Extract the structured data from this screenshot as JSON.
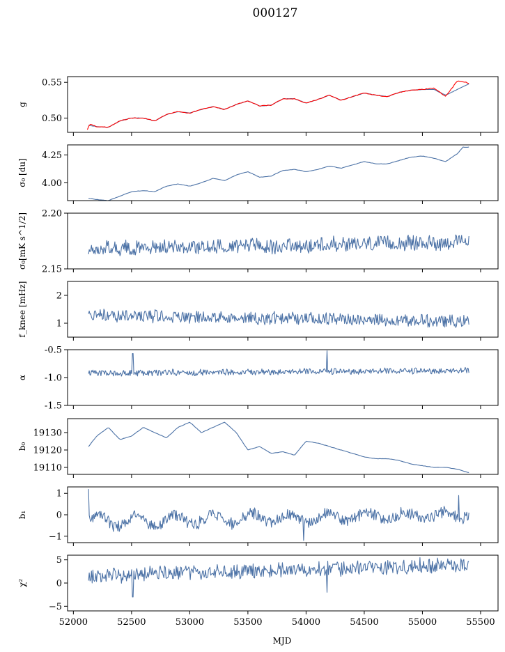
{
  "chart_data": {
    "type": "line",
    "title": "000127",
    "xlabel": "MJD",
    "xlim": [
      51950,
      55650
    ],
    "xticks": [
      52000,
      52500,
      53000,
      53500,
      54000,
      54500,
      55000,
      55500
    ],
    "x_range_data": [
      52130,
      55400
    ],
    "colors": {
      "series": "#4c72a6",
      "fit": "#ff0000"
    },
    "panels": [
      {
        "id": "g",
        "ylabel": "g",
        "ylim": [
          0.48,
          0.558
        ],
        "yticks": [
          0.5,
          0.55
        ],
        "ytick_labels": [
          "0.50",
          "0.55"
        ],
        "series": [
          {
            "color": "#4c72a6",
            "kind": "smooth",
            "x": [
              52130,
              52200,
              52300,
              52400,
              52500,
              52600,
              52700,
              52800,
              52900,
              53000,
              53100,
              53200,
              53300,
              53400,
              53500,
              53600,
              53700,
              53800,
              53900,
              54000,
              54100,
              54200,
              54300,
              54400,
              54500,
              54600,
              54700,
              54800,
              54900,
              55000,
              55100,
              55200,
              55300,
              55400
            ],
            "y": [
              0.49,
              0.488,
              0.487,
              0.496,
              0.5,
              0.5,
              0.496,
              0.505,
              0.509,
              0.507,
              0.512,
              0.516,
              0.512,
              0.519,
              0.524,
              0.517,
              0.518,
              0.527,
              0.527,
              0.521,
              0.526,
              0.532,
              0.525,
              0.53,
              0.535,
              0.532,
              0.53,
              0.536,
              0.539,
              0.54,
              0.54,
              0.532,
              0.54,
              0.548
            ]
          },
          {
            "color": "#ff0000",
            "kind": "smooth",
            "x": [
              52120,
              52140,
              52200,
              52300,
              52400,
              52500,
              52600,
              52700,
              52800,
              52900,
              53000,
              53100,
              53200,
              53300,
              53400,
              53500,
              53600,
              53700,
              53800,
              53900,
              54000,
              54100,
              54200,
              54300,
              54400,
              54500,
              54600,
              54700,
              54800,
              54900,
              55000,
              55100,
              55200,
              55300,
              55380,
              55400
            ],
            "y": [
              0.484,
              0.492,
              0.488,
              0.487,
              0.496,
              0.5,
              0.5,
              0.496,
              0.505,
              0.509,
              0.507,
              0.512,
              0.516,
              0.512,
              0.519,
              0.524,
              0.517,
              0.518,
              0.527,
              0.527,
              0.521,
              0.526,
              0.532,
              0.525,
              0.53,
              0.535,
              0.532,
              0.53,
              0.536,
              0.539,
              0.54,
              0.542,
              0.53,
              0.552,
              0.55,
              0.548
            ]
          }
        ]
      },
      {
        "id": "sigma0",
        "ylabel": "σ₀ [du]",
        "ylim": [
          3.84,
          4.34
        ],
        "yticks": [
          4.0,
          4.25
        ],
        "ytick_labels": [
          "4.00",
          "4.25"
        ],
        "series": [
          {
            "color": "#4c72a6",
            "kind": "smooth",
            "x": [
              52130,
              52200,
              52300,
              52400,
              52500,
              52600,
              52700,
              52800,
              52900,
              53000,
              53100,
              53200,
              53300,
              53400,
              53500,
              53600,
              53700,
              53800,
              53900,
              54000,
              54100,
              54200,
              54300,
              54400,
              54500,
              54600,
              54700,
              54800,
              54900,
              55000,
              55100,
              55200,
              55300,
              55350,
              55400
            ],
            "y": [
              3.86,
              3.85,
              3.84,
              3.88,
              3.92,
              3.93,
              3.92,
              3.97,
              3.99,
              3.97,
              4.0,
              4.04,
              4.02,
              4.07,
              4.1,
              4.05,
              4.06,
              4.11,
              4.12,
              4.1,
              4.12,
              4.15,
              4.13,
              4.16,
              4.19,
              4.17,
              4.17,
              4.2,
              4.23,
              4.24,
              4.22,
              4.19,
              4.26,
              4.32,
              4.32
            ]
          }
        ]
      },
      {
        "id": "sigma0_units",
        "ylabel": "σ₀[mK s^1/2]",
        "ylim": [
          2.15,
          2.2
        ],
        "yticks": [
          2.15,
          2.2
        ],
        "ytick_labels": [
          "2.15",
          "2.20"
        ],
        "series": [
          {
            "color": "#4c72a6",
            "kind": "noise",
            "base": 2.172,
            "amp": 0.006,
            "x": [
              52130,
              55400
            ],
            "y_start": 2.168,
            "y_end": 2.174
          }
        ]
      },
      {
        "id": "fknee",
        "ylabel": "f_knee [mHz]",
        "ylim": [
          0.5,
          2.5
        ],
        "yticks": [
          1,
          2
        ],
        "ytick_labels": [
          "1",
          "2"
        ],
        "series": [
          {
            "color": "#4c72a6",
            "kind": "noise",
            "base": 1.2,
            "amp": 0.2,
            "x": [
              52130,
              55400
            ],
            "y_start": 1.3,
            "y_end": 1.05
          }
        ]
      },
      {
        "id": "alpha",
        "ylabel": "α",
        "ylim": [
          -1.5,
          -0.5
        ],
        "yticks": [
          -1.5,
          -1.0,
          -0.5
        ],
        "ytick_labels": [
          "-1.5",
          "-1.0",
          "-0.5"
        ],
        "series": [
          {
            "color": "#4c72a6",
            "kind": "noise",
            "base": -0.88,
            "amp": 0.05,
            "x": [
              52130,
              55400
            ],
            "y_start": -0.92,
            "y_end": -0.88,
            "spikes": [
              [
                52510,
                -0.57
              ],
              [
                54180,
                -0.52
              ]
            ]
          }
        ]
      },
      {
        "id": "b0",
        "ylabel": "b₀",
        "ylim": [
          19106,
          19138
        ],
        "yticks": [
          19110,
          19120,
          19130
        ],
        "ytick_labels": [
          "19110",
          "19120",
          "19130"
        ],
        "series": [
          {
            "color": "#4c72a6",
            "kind": "smooth",
            "x": [
              52130,
              52200,
              52300,
              52400,
              52500,
              52600,
              52700,
              52800,
              52900,
              53000,
              53100,
              53200,
              53300,
              53400,
              53500,
              53600,
              53700,
              53800,
              53900,
              54000,
              54100,
              54200,
              54300,
              54400,
              54500,
              54600,
              54700,
              54800,
              54900,
              55000,
              55100,
              55200,
              55300,
              55350,
              55400
            ],
            "y": [
              19122,
              19128,
              19133,
              19126,
              19128,
              19133,
              19130,
              19127,
              19133,
              19136,
              19130,
              19133,
              19136,
              19130,
              19120,
              19122,
              19118,
              19119,
              19117,
              19125,
              19124,
              19122,
              19120,
              19118,
              19116,
              19115,
              19115,
              19114,
              19112,
              19111,
              19110,
              19110,
              19109,
              19108,
              19107
            ]
          }
        ]
      },
      {
        "id": "b1",
        "ylabel": "b₁",
        "ylim": [
          -1.3,
          1.3
        ],
        "yticks": [
          -1,
          0,
          1
        ],
        "ytick_labels": [
          "−1",
          "0",
          "1"
        ],
        "series": [
          {
            "color": "#4c72a6",
            "kind": "noise",
            "base": 0.0,
            "amp": 0.25,
            "x": [
              52130,
              55400
            ],
            "y_start": -0.3,
            "y_end": 0.0,
            "wave": 0.3,
            "spikes": [
              [
                52130,
                1.2
              ],
              [
                53980,
                -1.2
              ],
              [
                55310,
                0.9
              ]
            ]
          }
        ]
      },
      {
        "id": "chi2",
        "ylabel": "χ²",
        "ylim": [
          -6,
          6
        ],
        "yticks": [
          -5,
          0,
          5
        ],
        "ytick_labels": [
          "−5",
          "0",
          "5"
        ],
        "series": [
          {
            "color": "#4c72a6",
            "kind": "noise",
            "base": 2.5,
            "amp": 1.4,
            "x": [
              52130,
              55400
            ],
            "y_start": 1.5,
            "y_end": 4.0,
            "spikes": [
              [
                52510,
                -3.0
              ],
              [
                54180,
                -2.0
              ]
            ]
          }
        ]
      }
    ]
  }
}
